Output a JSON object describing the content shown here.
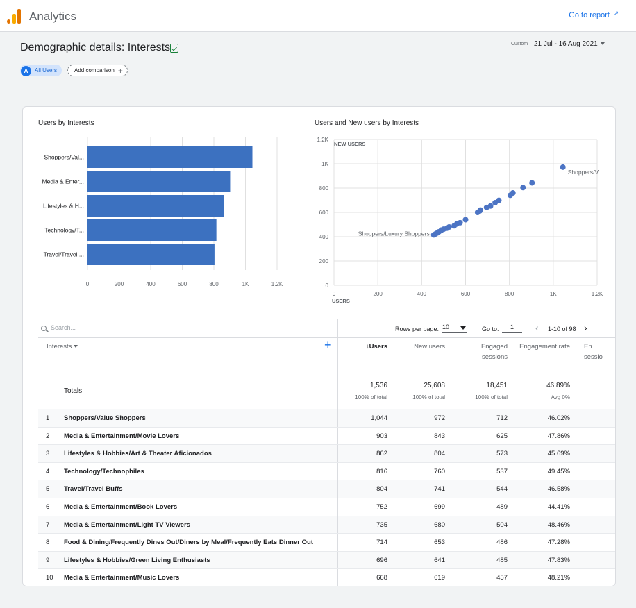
{
  "header": {
    "app_title": "Analytics",
    "go_to_report": "Go to report",
    "page_title": "Demographic details: Interests",
    "date_custom": "Custom",
    "date_range": "21 Jul - 16 Aug 2021",
    "segment_avatar": "A",
    "segment_label": "All Users",
    "add_comparison": "Add comparison"
  },
  "bar_card": {
    "title": "Users by Interests"
  },
  "scatter_card": {
    "title": "Users and New users by Interests"
  },
  "chart_data": [
    {
      "type": "bar",
      "title": "Users by Interests",
      "orientation": "horizontal",
      "categories": [
        "Shoppers/Val...",
        "Media & Enter...",
        "Lifestyles & H...",
        "Technology/T...",
        "Travel/Travel ..."
      ],
      "values": [
        1044,
        903,
        862,
        816,
        804
      ],
      "xlim": [
        0,
        1200
      ],
      "xticks": [
        "0",
        "200",
        "400",
        "600",
        "800",
        "1K",
        "1.2K"
      ],
      "color": "#3c71c0",
      "grid": true
    },
    {
      "type": "scatter",
      "title": "Users and New users by Interests",
      "xlabel": "USERS",
      "ylabel": "NEW USERS",
      "xlim": [
        0,
        1200
      ],
      "ylim": [
        0,
        1200
      ],
      "xticks": [
        "0",
        "200",
        "400",
        "600",
        "800",
        "1K",
        "1.2K"
      ],
      "yticks": [
        "0",
        "200",
        "400",
        "600",
        "800",
        "1K",
        "1.2K"
      ],
      "color": "#4c74c4",
      "annotations": [
        {
          "label": "Shoppers/V",
          "x": 1044,
          "y": 972
        },
        {
          "label": "Shoppers/Luxury Shoppers",
          "x": 455,
          "y": 415
        }
      ],
      "points": [
        [
          1044,
          972
        ],
        [
          903,
          843
        ],
        [
          862,
          804
        ],
        [
          816,
          760
        ],
        [
          804,
          741
        ],
        [
          752,
          699
        ],
        [
          735,
          680
        ],
        [
          714,
          653
        ],
        [
          696,
          641
        ],
        [
          668,
          619
        ],
        [
          665,
          612
        ],
        [
          655,
          600
        ],
        [
          600,
          540
        ],
        [
          575,
          515
        ],
        [
          560,
          505
        ],
        [
          548,
          490
        ],
        [
          525,
          480
        ],
        [
          515,
          470
        ],
        [
          500,
          462
        ],
        [
          490,
          455
        ],
        [
          488,
          450
        ],
        [
          478,
          440
        ],
        [
          470,
          430
        ],
        [
          462,
          422
        ],
        [
          455,
          415
        ]
      ],
      "grid": true
    }
  ],
  "table": {
    "search_placeholder": "Search...",
    "rows_per_page_label": "Rows per page:",
    "rows_per_page_value": "10",
    "goto_label": "Go to:",
    "goto_value": "1",
    "page_range": "1-10 of 98",
    "dimension_header": "Interests",
    "columns": [
      "Users",
      "New users",
      "Engaged sessions",
      "Engagement rate",
      "En sessio"
    ],
    "totals_label": "Totals",
    "totals": [
      {
        "value": "1,536",
        "sub": "100% of total"
      },
      {
        "value": "25,608",
        "sub": "100% of total"
      },
      {
        "value": "18,451",
        "sub": "100% of total"
      },
      {
        "value": "46.89%",
        "sub": "Avg 0%"
      }
    ],
    "rows": [
      {
        "n": "1",
        "name": "Shoppers/Value Shoppers",
        "users": "1,044",
        "new": "972",
        "eng": "712",
        "rate": "46.02%"
      },
      {
        "n": "2",
        "name": "Media & Entertainment/Movie Lovers",
        "users": "903",
        "new": "843",
        "eng": "625",
        "rate": "47.86%"
      },
      {
        "n": "3",
        "name": "Lifestyles & Hobbies/Art & Theater Aficionados",
        "users": "862",
        "new": "804",
        "eng": "573",
        "rate": "45.69%"
      },
      {
        "n": "4",
        "name": "Technology/Technophiles",
        "users": "816",
        "new": "760",
        "eng": "537",
        "rate": "49.45%"
      },
      {
        "n": "5",
        "name": "Travel/Travel Buffs",
        "users": "804",
        "new": "741",
        "eng": "544",
        "rate": "46.58%"
      },
      {
        "n": "6",
        "name": "Media & Entertainment/Book Lovers",
        "users": "752",
        "new": "699",
        "eng": "489",
        "rate": "44.41%"
      },
      {
        "n": "7",
        "name": "Media & Entertainment/Light TV Viewers",
        "users": "735",
        "new": "680",
        "eng": "504",
        "rate": "48.46%"
      },
      {
        "n": "8",
        "name": "Food & Dining/Frequently Dines Out/Diners by Meal/Frequently Eats Dinner Out",
        "users": "714",
        "new": "653",
        "eng": "486",
        "rate": "47.28%"
      },
      {
        "n": "9",
        "name": "Lifestyles & Hobbies/Green Living Enthusiasts",
        "users": "696",
        "new": "641",
        "eng": "485",
        "rate": "47.83%"
      },
      {
        "n": "10",
        "name": "Media & Entertainment/Music Lovers",
        "users": "668",
        "new": "619",
        "eng": "457",
        "rate": "48.21%"
      }
    ]
  }
}
